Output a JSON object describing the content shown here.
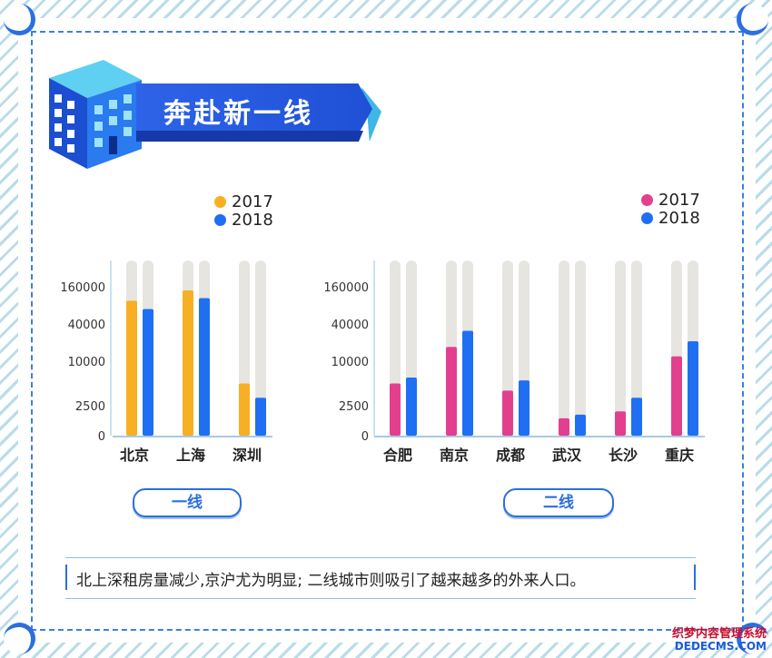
{
  "title": "奔赴新一线",
  "colors": {
    "c2017_first": "#f7b023",
    "c2017_second": "#e2408f",
    "c2018": "#1f6ff2",
    "track": "#e6e5e0",
    "accent": "#2b6fe0"
  },
  "chart_data": [
    {
      "type": "bar",
      "categories": [
        "北京",
        "上海",
        "深圳"
      ],
      "y_ticks": [
        "160000",
        "40000",
        "10000",
        "2500",
        "0"
      ],
      "series": [
        {
          "name": "2017",
          "values": [
            95000,
            140000,
            5000
          ]
        },
        {
          "name": "2018",
          "values": [
            70000,
            105000,
            3200
          ]
        }
      ],
      "legend": {
        "labels": [
          "2017",
          "2018"
        ],
        "placement": "top-right"
      },
      "caption": "一线"
    },
    {
      "type": "bar",
      "categories": [
        "合肥",
        "南京",
        "成都",
        "武汉",
        "长沙",
        "重庆"
      ],
      "y_ticks": [
        "160000",
        "40000",
        "10000",
        "2500",
        "0"
      ],
      "series": [
        {
          "name": "2017",
          "values": [
            5000,
            17000,
            4000,
            1700,
            2100,
            12000
          ]
        },
        {
          "name": "2018",
          "values": [
            6000,
            31000,
            5500,
            1900,
            3200,
            21000
          ]
        }
      ],
      "legend": {
        "labels": [
          "2017",
          "2018"
        ],
        "placement": "top-right"
      },
      "caption": "二线"
    }
  ],
  "note": "北上深租房量减少,京沪尤为明显;  二线城市则吸引了越来越多的外来人口。",
  "watermark": {
    "line1": "织梦内容管理系统",
    "line2": "DEDECMS.COM"
  }
}
